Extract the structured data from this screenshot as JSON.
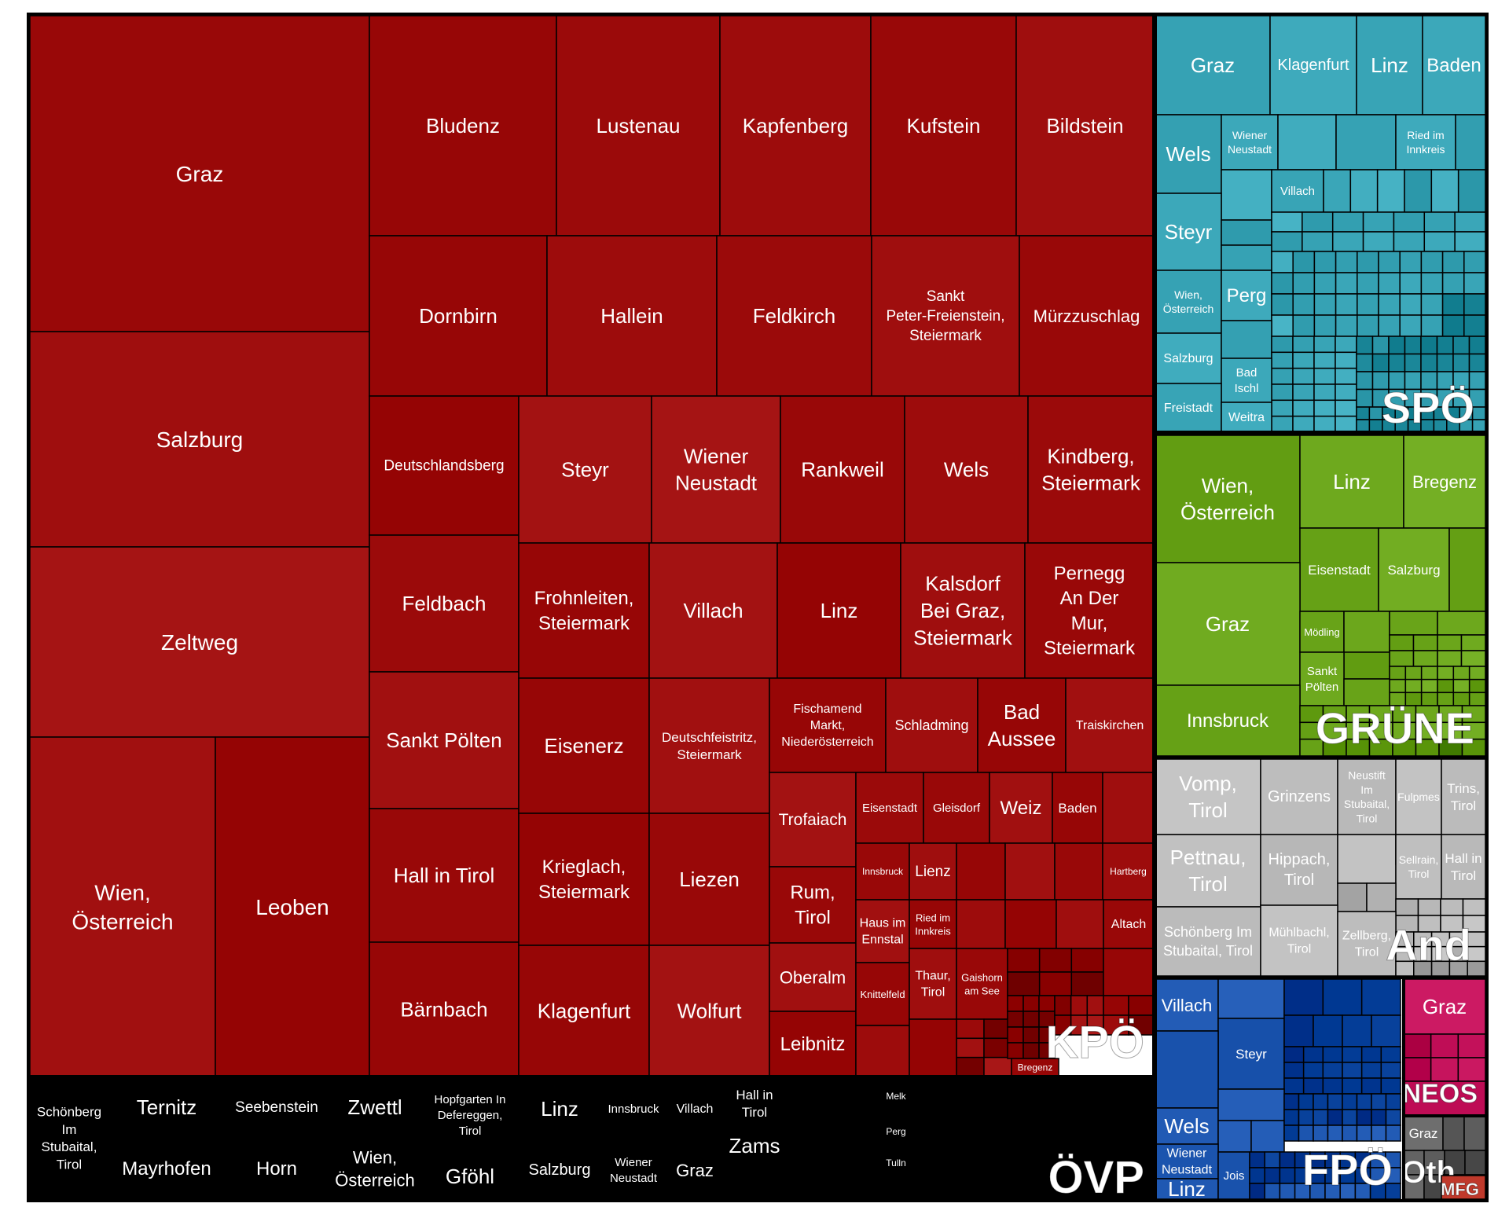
{
  "chart_data": {
    "type": "treemap",
    "title": "",
    "groups": [
      {
        "name": "KPÖ",
        "color": "#9b0a0a",
        "cells": [
          {
            "label": "Graz"
          },
          {
            "label": "Salzburg"
          },
          {
            "label": "Zeltweg"
          },
          {
            "label": "Wien,\nÖsterreich"
          },
          {
            "label": "Leoben"
          },
          {
            "label": "Bludenz"
          },
          {
            "label": "Lustenau"
          },
          {
            "label": "Kapfenberg"
          },
          {
            "label": "Kufstein"
          },
          {
            "label": "Bildstein"
          },
          {
            "label": "Dornbirn"
          },
          {
            "label": "Hallein"
          },
          {
            "label": "Feldkirch"
          },
          {
            "label": "Sankt\nPeter-Freienstein,\nSteiermark"
          },
          {
            "label": "Mürzzuschlag"
          },
          {
            "label": "Deutschlandsberg"
          },
          {
            "label": "Feldbach"
          },
          {
            "label": "Sankt Pölten"
          },
          {
            "label": "Hall in Tirol"
          },
          {
            "label": "Bärnbach"
          },
          {
            "label": "Steyr"
          },
          {
            "label": "Wiener\nNeustadt"
          },
          {
            "label": "Rankweil"
          },
          {
            "label": "Wels"
          },
          {
            "label": "Kindberg,\nSteiermark"
          },
          {
            "label": "Frohnleiten,\nSteiermark"
          },
          {
            "label": "Villach"
          },
          {
            "label": "Linz"
          },
          {
            "label": "Kalsdorf\nBei Graz,\nSteiermark"
          },
          {
            "label": "Pernegg\nAn Der\nMur,\nSteiermark"
          },
          {
            "label": "Eisenerz"
          },
          {
            "label": "Deutschfeistritz,\nSteiermark"
          },
          {
            "label": "Fischamend\nMarkt,\nNiederösterreich"
          },
          {
            "label": "Schladming"
          },
          {
            "label": "Bad\nAussee"
          },
          {
            "label": "Traiskirchen"
          },
          {
            "label": "Krieglach,\nSteiermark"
          },
          {
            "label": "Liezen"
          },
          {
            "label": "Trofaiach"
          },
          {
            "label": "Eisenstadt"
          },
          {
            "label": "Gleisdorf"
          },
          {
            "label": "Weiz"
          },
          {
            "label": "Baden"
          },
          {
            "label": "Klagenfurt"
          },
          {
            "label": "Wolfurt"
          },
          {
            "label": "Rum,\nTirol"
          },
          {
            "label": "Oberalm"
          },
          {
            "label": "Leibnitz"
          },
          {
            "label": "Innsbruck"
          },
          {
            "label": "Lienz"
          },
          {
            "label": "Hartberg"
          },
          {
            "label": "Haus im\nEnnstal"
          },
          {
            "label": "Ried im\nInnkreis"
          },
          {
            "label": "Altach"
          },
          {
            "label": "Knittelfeld"
          },
          {
            "label": "Thaur,\nTirol"
          },
          {
            "label": "Gaishorn\nam See"
          },
          {
            "label": "Bregenz"
          }
        ]
      },
      {
        "name": "ÖVP",
        "color": "#000000",
        "cells": [
          {
            "label": "Schönberg\nIm\nStubaital,\nTirol"
          },
          {
            "label": "Ternitz"
          },
          {
            "label": "Mayrhofen"
          },
          {
            "label": "Seebenstein"
          },
          {
            "label": "Horn"
          },
          {
            "label": "Zwettl"
          },
          {
            "label": "Wien,\nÖsterreich"
          },
          {
            "label": "Hopfgarten In\nDefereggen,\nTirol"
          },
          {
            "label": "Gföhl"
          },
          {
            "label": "Linz"
          },
          {
            "label": "Salzburg"
          },
          {
            "label": "Innsbruck"
          },
          {
            "label": "Wiener\nNeustadt"
          },
          {
            "label": "Villach"
          },
          {
            "label": "Graz"
          },
          {
            "label": "Hall in\nTirol"
          },
          {
            "label": "Zams"
          },
          {
            "label": "Melk"
          },
          {
            "label": "Perg"
          },
          {
            "label": "Tulln"
          }
        ]
      },
      {
        "name": "SPÖ",
        "color": "#3aa6b8",
        "cells": [
          {
            "label": "Graz"
          },
          {
            "label": "Klagenfurt"
          },
          {
            "label": "Linz"
          },
          {
            "label": "Baden"
          },
          {
            "label": "Wels"
          },
          {
            "label": "Wiener\nNeustadt"
          },
          {
            "label": "Ried im\nInnkreis"
          },
          {
            "label": "Villach"
          },
          {
            "label": "Steyr"
          },
          {
            "label": "Wien,\nÖsterreich"
          },
          {
            "label": "Perg"
          },
          {
            "label": "Salzburg"
          },
          {
            "label": "Bad\nIschl"
          },
          {
            "label": "Freistadt"
          },
          {
            "label": "Weitra"
          }
        ]
      },
      {
        "name": "GRÜNE",
        "color": "#6aa51a",
        "cells": [
          {
            "label": "Wien,\nÖsterreich"
          },
          {
            "label": "Linz"
          },
          {
            "label": "Bregenz"
          },
          {
            "label": "Eisenstadt"
          },
          {
            "label": "Salzburg"
          },
          {
            "label": "Graz"
          },
          {
            "label": "Mödling"
          },
          {
            "label": "Sankt\nPölten"
          },
          {
            "label": "Innsbruck"
          }
        ]
      },
      {
        "name": "And",
        "color": "#bdbdbd",
        "cells": [
          {
            "label": "Vomp,\nTirol"
          },
          {
            "label": "Grinzens"
          },
          {
            "label": "Neustift\nIm\nStubaital,\nTirol"
          },
          {
            "label": "Fulpmes"
          },
          {
            "label": "Trins,\nTirol"
          },
          {
            "label": "Pettnau,\nTirol"
          },
          {
            "label": "Hippach,\nTirol"
          },
          {
            "label": "Sellrain,\nTirol"
          },
          {
            "label": "Hall in\nTirol"
          },
          {
            "label": "Schönberg Im\nStubaital, Tirol"
          },
          {
            "label": "Mühlbachl,\nTirol"
          },
          {
            "label": "Zellberg,\nTirol"
          }
        ]
      },
      {
        "name": "FPÖ",
        "color": "#1d56b0",
        "cells": [
          {
            "label": "Villach"
          },
          {
            "label": "Steyr"
          },
          {
            "label": "Wels"
          },
          {
            "label": "Wiener\nNeustadt"
          },
          {
            "label": "Linz"
          },
          {
            "label": "Jois"
          }
        ]
      },
      {
        "name": "NEOS",
        "color": "#c8165f",
        "cells": [
          {
            "label": "Graz"
          }
        ]
      },
      {
        "name": "Oth",
        "color": "#6e6e6e",
        "cells": [
          {
            "label": "Graz"
          }
        ]
      },
      {
        "name": "MFG",
        "color": "#c0392b",
        "cells": []
      }
    ]
  }
}
